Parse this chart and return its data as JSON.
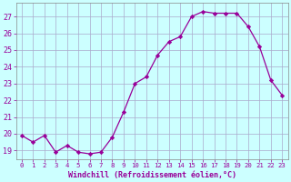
{
  "x": [
    0,
    1,
    2,
    3,
    4,
    5,
    6,
    7,
    8,
    9,
    10,
    11,
    12,
    13,
    14,
    15,
    16,
    17,
    18,
    19,
    20,
    21,
    22,
    23
  ],
  "y": [
    19.9,
    19.5,
    19.9,
    18.9,
    19.3,
    18.9,
    18.8,
    18.9,
    19.8,
    21.3,
    23.0,
    23.4,
    24.7,
    25.5,
    25.8,
    27.0,
    27.3,
    27.2,
    27.2,
    27.2,
    26.4,
    25.2,
    23.2,
    22.3
  ],
  "line_color": "#990099",
  "marker": "D",
  "markersize": 2.2,
  "linewidth": 0.9,
  "bg_color": "#ccffff",
  "grid_color": "#aaaacc",
  "xlabel": "Windchill (Refroidissement éolien,°C)",
  "xlabel_fontsize": 6.0,
  "tick_color": "#990099",
  "ytick_fontsize": 6.0,
  "xtick_fontsize": 5.2,
  "ylim": [
    18.5,
    27.8
  ],
  "yticks": [
    19,
    20,
    21,
    22,
    23,
    24,
    25,
    26,
    27
  ],
  "xticks": [
    0,
    1,
    2,
    3,
    4,
    5,
    6,
    7,
    8,
    9,
    10,
    11,
    12,
    13,
    14,
    15,
    16,
    17,
    18,
    19,
    20,
    21,
    22,
    23
  ],
  "spine_color": "#888888"
}
